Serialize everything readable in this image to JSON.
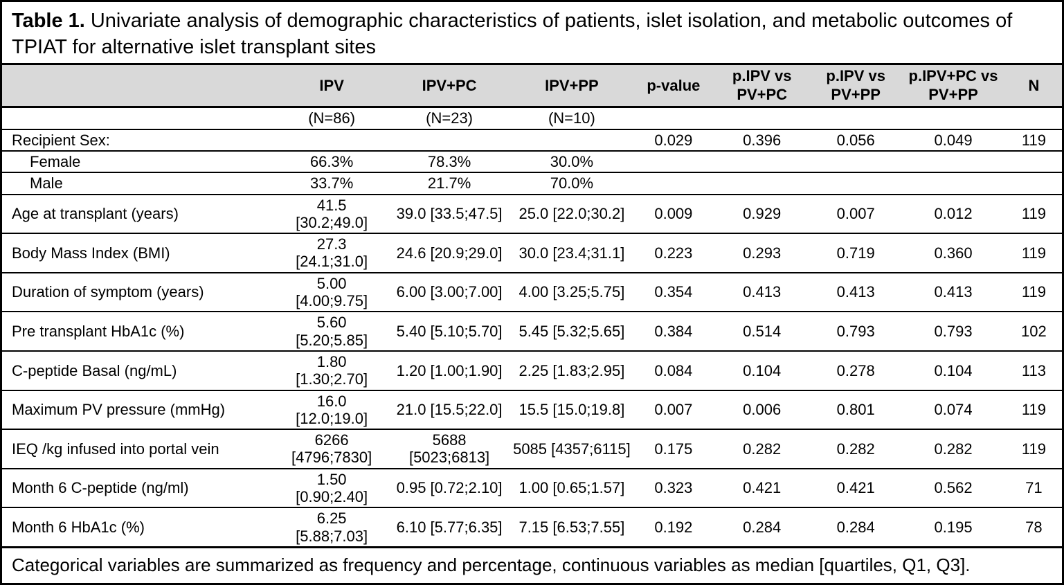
{
  "title": {
    "label": "Table 1.",
    "text": "Univariate analysis of demographic characteristics of patients, islet isolation, and metabolic outcomes of TPIAT for alternative islet transplant sites"
  },
  "table": {
    "columns": [
      "",
      "IPV",
      "IPV+PC",
      "IPV+PP",
      "p-value",
      "p.IPV vs\nPV+PC",
      "p.IPV vs\nPV+PP",
      "p.IPV+PC vs\nPV+PP",
      "N"
    ],
    "subheader": [
      "",
      "(N=86)",
      "(N=23)",
      "(N=10)",
      "",
      "",
      "",
      "",
      ""
    ],
    "rows": [
      [
        "Recipient Sex:",
        "",
        "",
        "",
        "0.029",
        "0.396",
        "0.056",
        "0.049",
        "119"
      ],
      [
        "Female",
        "66.3%",
        "78.3%",
        "30.0%",
        "",
        "",
        "",
        "",
        ""
      ],
      [
        "Male",
        "33.7%",
        "21.7%",
        "70.0%",
        "",
        "",
        "",
        "",
        ""
      ],
      [
        "Age at transplant (years)",
        "41.5\n[30.2;49.0]",
        "39.0 [33.5;47.5]",
        "25.0 [22.0;30.2]",
        "0.009",
        "0.929",
        "0.007",
        "0.012",
        "119"
      ],
      [
        "Body Mass Index (BMI)",
        "27.3\n[24.1;31.0]",
        "24.6 [20.9;29.0]",
        "30.0 [23.4;31.1]",
        "0.223",
        "0.293",
        "0.719",
        "0.360",
        "119"
      ],
      [
        "Duration of symptom (years)",
        "5.00\n[4.00;9.75]",
        "6.00 [3.00;7.00]",
        "4.00 [3.25;5.75]",
        "0.354",
        "0.413",
        "0.413",
        "0.413",
        "119"
      ],
      [
        "Pre transplant HbA1c (%)",
        "5.60\n[5.20;5.85]",
        "5.40 [5.10;5.70]",
        "5.45 [5.32;5.65]",
        "0.384",
        "0.514",
        "0.793",
        "0.793",
        "102"
      ],
      [
        "C-peptide Basal (ng/mL)",
        "1.80\n[1.30;2.70]",
        "1.20 [1.00;1.90]",
        "2.25 [1.83;2.95]",
        "0.084",
        "0.104",
        "0.278",
        "0.104",
        "113"
      ],
      [
        "Maximum PV pressure (mmHg)",
        "16.0\n[12.0;19.0]",
        "21.0 [15.5;22.0]",
        "15.5 [15.0;19.8]",
        "0.007",
        "0.006",
        "0.801",
        "0.074",
        "119"
      ],
      [
        "IEQ /kg infused into portal vein",
        "6266\n[4796;7830]",
        "5688 [5023;6813]",
        "5085 [4357;6115]",
        "0.175",
        "0.282",
        "0.282",
        "0.282",
        "119"
      ],
      [
        "Month 6 C-peptide (ng/ml)",
        "1.50\n[0.90;2.40]",
        "0.95 [0.72;2.10]",
        "1.00 [0.65;1.57]",
        "0.323",
        "0.421",
        "0.421",
        "0.562",
        "71"
      ],
      [
        "Month 6 HbA1c (%)",
        "6.25\n[5.88;7.03]",
        "6.10 [5.77;6.35]",
        "7.15 [6.53;7.55]",
        "0.192",
        "0.284",
        "0.284",
        "0.195",
        "78"
      ]
    ],
    "footnote": "Categorical variables are summarized as frequency and percentage, continuous variables as median [quartiles, Q1, Q3]."
  }
}
